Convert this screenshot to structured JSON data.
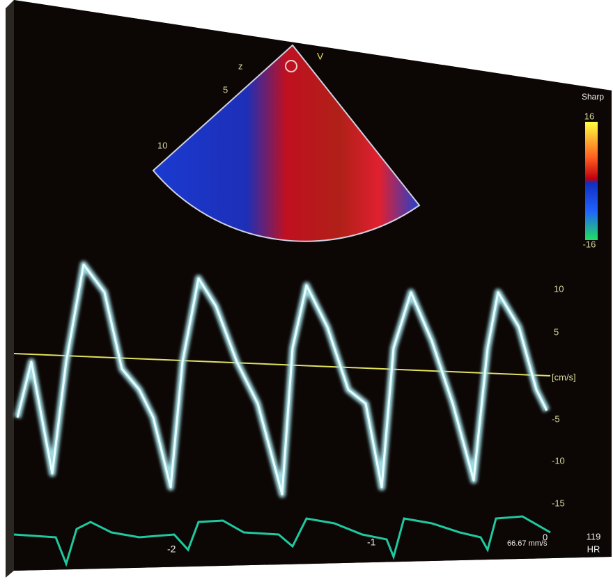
{
  "color_map": {
    "title": "Sharp",
    "max_label": "16",
    "min_label": "-16"
  },
  "sector": {
    "mode_label": "V",
    "depth_labels": [
      "z",
      "5",
      "10"
    ]
  },
  "velocity_scale": {
    "labels": [
      "10",
      "5",
      "[cm/s]",
      "-5",
      "-10",
      "-15"
    ]
  },
  "time_axis": {
    "labels": [
      "-2",
      "-1",
      "0"
    ],
    "sweep_speed": "66.67 mm/s"
  },
  "heart_rate": {
    "value": "119",
    "label": "HR"
  }
}
